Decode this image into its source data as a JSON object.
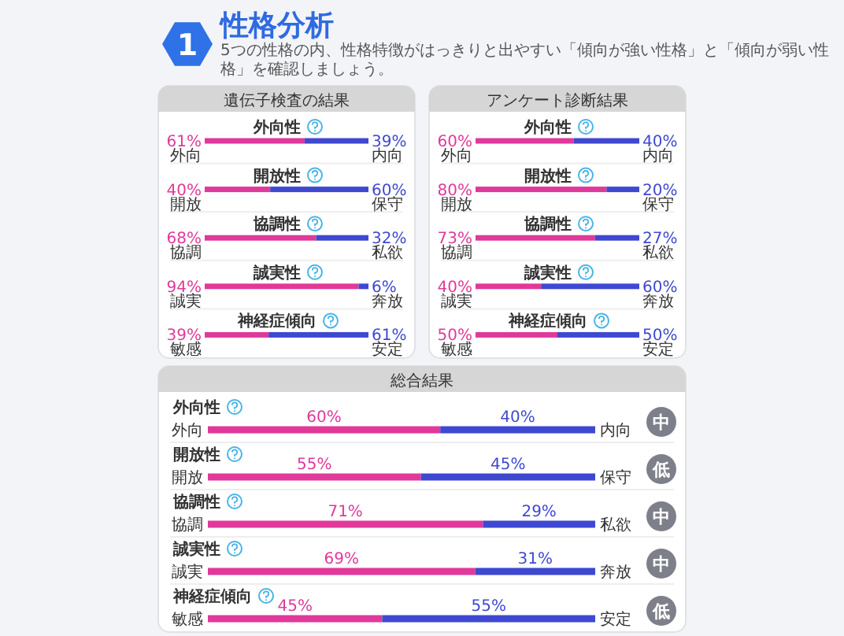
{
  "chart_data": [
    {
      "type": "other",
      "title": "性格分析",
      "subtitle": "5つの性格の内、性格特徴がはっきりと出やすい「傾向が強い性格」と「傾向が弱い性格」を確認しましょう。",
      "annotations": [
        "1"
      ]
    },
    {
      "type": "bar",
      "orientation": "horizontal",
      "stacked": true,
      "title": "遺伝子検査の結果",
      "categories": [
        "外向性",
        "開放性",
        "協調性",
        "誠実性",
        "神経症傾向"
      ],
      "xlim": [
        0,
        100
      ],
      "series": [
        {
          "color": "#e0399a",
          "values": [
            61,
            40,
            68,
            94,
            39
          ],
          "value_labels": [
            "61%",
            "40%",
            "68%",
            "94%",
            "39%"
          ]
        },
        {
          "color": "#3f48d0",
          "values": [
            39,
            60,
            32,
            6,
            61
          ],
          "value_labels": [
            "39%",
            "60%",
            "32%",
            "6%",
            "61%"
          ]
        }
      ],
      "annotations": [
        "外向",
        "内向",
        "開放",
        "保守",
        "協調",
        "私欲",
        "誠実",
        "奔放",
        "敏感",
        "安定"
      ]
    },
    {
      "type": "bar",
      "orientation": "horizontal",
      "stacked": true,
      "title": "アンケート診断結果",
      "categories": [
        "外向性",
        "開放性",
        "協調性",
        "誠実性",
        "神経症傾向"
      ],
      "xlim": [
        0,
        100
      ],
      "series": [
        {
          "color": "#e0399a",
          "values": [
            60,
            80,
            73,
            40,
            50
          ],
          "value_labels": [
            "60%",
            "80%",
            "73%",
            "40%",
            "50%"
          ]
        },
        {
          "color": "#3f48d0",
          "values": [
            40,
            20,
            27,
            60,
            50
          ],
          "value_labels": [
            "40%",
            "20%",
            "27%",
            "60%",
            "50%"
          ]
        }
      ],
      "annotations": [
        "外向",
        "内向",
        "開放",
        "保守",
        "協調",
        "私欲",
        "誠実",
        "奔放",
        "敏感",
        "安定"
      ]
    },
    {
      "type": "bar",
      "orientation": "horizontal",
      "stacked": true,
      "title": "総合結果",
      "categories": [
        "外向性",
        "開放性",
        "協調性",
        "誠実性",
        "神経症傾向"
      ],
      "xlim": [
        0,
        100
      ],
      "series": [
        {
          "color": "#e0399a",
          "values": [
            60,
            55,
            71,
            69,
            45
          ],
          "value_labels": [
            "60%",
            "55%",
            "71%",
            "69%",
            "45%"
          ]
        },
        {
          "color": "#3f48d0",
          "values": [
            40,
            45,
            29,
            31,
            55
          ],
          "value_labels": [
            "40%",
            "45%",
            "29%",
            "31%",
            "55%"
          ]
        }
      ],
      "annotations": [
        "外向",
        "内向",
        "中",
        "開放",
        "保守",
        "低",
        "協調",
        "私欲",
        "中",
        "誠実",
        "奔放",
        "中",
        "敏感",
        "安定",
        "低"
      ]
    }
  ]
}
